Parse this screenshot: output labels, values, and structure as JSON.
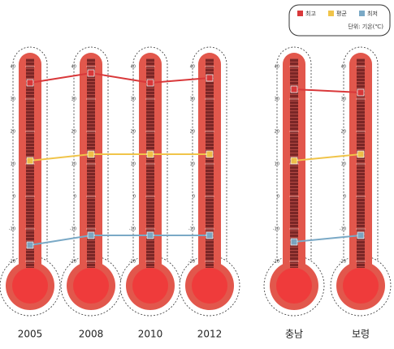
{
  "chart_data": [
    {
      "type": "line",
      "categories": [
        "2005",
        "2008",
        "2010",
        "2012"
      ],
      "ylim": [
        -20,
        40
      ],
      "yticks": [
        -20,
        -10,
        0,
        10,
        20,
        30,
        40
      ],
      "series": [
        {
          "color": "#d9383a",
          "values": [
            35,
            38,
            35,
            36.5
          ]
        },
        {
          "color": "#f0c44a",
          "values": [
            11,
            13,
            13,
            13
          ]
        },
        {
          "color": "#7aa9c6",
          "values": [
            -15,
            -12,
            -12,
            -12
          ]
        }
      ]
    },
    {
      "type": "line",
      "categories": [
        "충남",
        "보령"
      ],
      "ylim": [
        -20,
        40
      ],
      "yticks": [
        -20,
        -10,
        0,
        10,
        20,
        30,
        40
      ],
      "legend_unit": "단위: 기온(℃)",
      "series": [
        {
          "name": "최고",
          "color": "#d9383a",
          "values": [
            33,
            32
          ]
        },
        {
          "name": "평균",
          "color": "#f0c44a",
          "values": [
            11,
            13
          ]
        },
        {
          "name": "최저",
          "color": "#7aa9c6",
          "values": [
            -14,
            -12
          ]
        }
      ]
    }
  ]
}
